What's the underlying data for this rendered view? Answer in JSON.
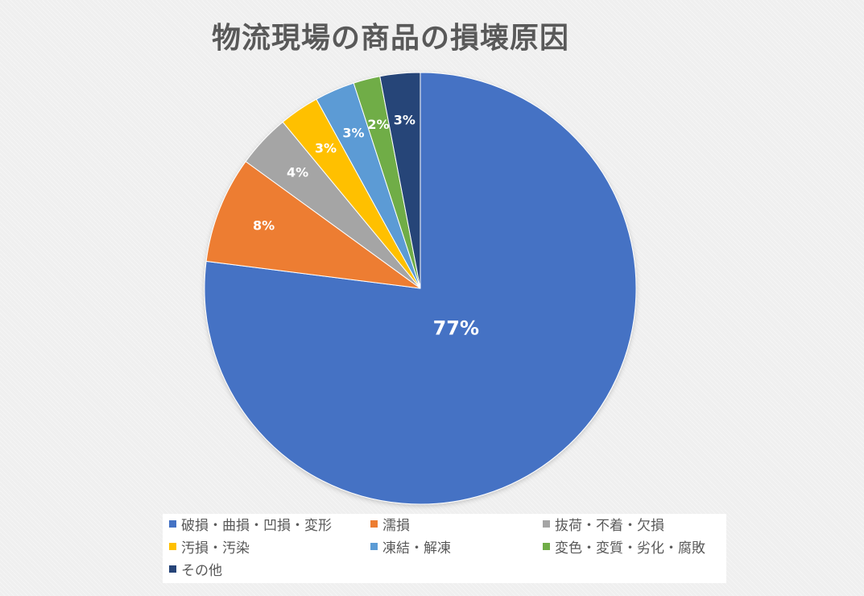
{
  "chart_data": {
    "type": "pie",
    "title": "物流現場の商品の損壊原因",
    "start_angle_deg": 0,
    "direction": "clockwise",
    "slices": [
      {
        "label": "破損・曲損・凹損・変形",
        "value": 77,
        "display": "77%",
        "color": "#4472c4"
      },
      {
        "label": "濡損",
        "value": 8,
        "display": "8%",
        "color": "#ed7d31"
      },
      {
        "label": "抜荷・不着・欠損",
        "value": 4,
        "display": "4%",
        "color": "#a5a5a5"
      },
      {
        "label": "汚損・汚染",
        "value": 3,
        "display": "3%",
        "color": "#ffc000"
      },
      {
        "label": "凍結・解凍",
        "value": 3,
        "display": "3%",
        "color": "#5b9bd5"
      },
      {
        "label": "変色・変質・劣化・腐敗",
        "value": 2,
        "display": "2%",
        "color": "#70ad47"
      },
      {
        "label": "その他",
        "value": 3,
        "display": "3%",
        "color": "#264478"
      }
    ],
    "legend_position": "bottom"
  }
}
